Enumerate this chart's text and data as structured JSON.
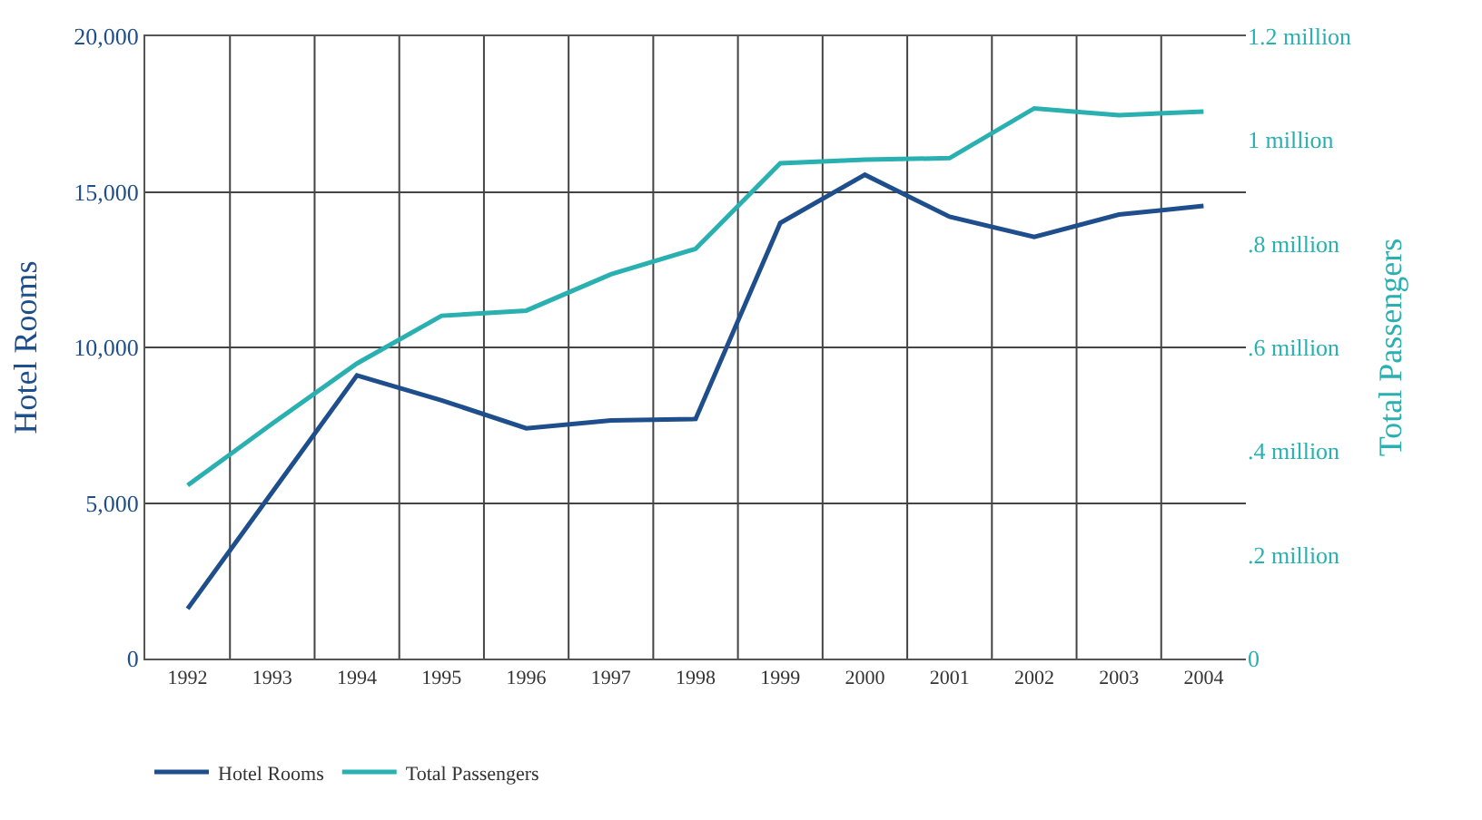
{
  "chart_data": {
    "type": "line",
    "categories": [
      "1992",
      "1993",
      "1994",
      "1995",
      "1996",
      "1997",
      "1998",
      "1999",
      "2000",
      "2001",
      "2002",
      "2003",
      "2004"
    ],
    "ylabel": "Hotel Rooms",
    "y2label": "Total Passengers",
    "series": [
      {
        "name": "Hotel Rooms",
        "color": "#1f4e8c",
        "values": [
          1600,
          5350,
          9100,
          8300,
          7400,
          7650,
          7700,
          14000,
          15550,
          14200,
          13550,
          14270,
          14550
        ]
      },
      {
        "name": "Total Passengers",
        "color": "#2ab0b0",
        "axis": "y2",
        "values": [
          0.334,
          0.453,
          0.569,
          0.661,
          0.671,
          0.741,
          0.79,
          0.955,
          0.962,
          0.965,
          1.061,
          1.048,
          1.055
        ]
      }
    ],
    "ylim": [
      0,
      20000
    ],
    "yticks": [
      0,
      {
        "value": 5000,
        "label": "5,000"
      },
      {
        "value": 10000,
        "label": "10,000"
      },
      {
        "value": 15000,
        "label": "15,000"
      },
      {
        "value": 20000,
        "label": "20,000"
      }
    ],
    "y2lim": [
      0,
      1.2
    ],
    "y2ticks": [
      0,
      {
        "value": 0.2,
        "label": ".2 million"
      },
      {
        "value": 0.4,
        "label": ".4 million"
      },
      {
        "value": 0.6,
        "label": ".6 million"
      },
      {
        "value": 0.8,
        "label": ".8 million"
      },
      {
        "value": 1,
        "label": "1 million"
      },
      {
        "value": 1.2,
        "label": "1.2 million"
      }
    ],
    "grid": true,
    "legend": "bottom left",
    "marker": "none",
    "line_style": "solid"
  }
}
